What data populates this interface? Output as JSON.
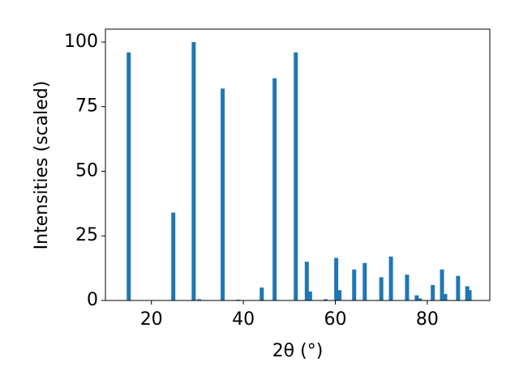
{
  "chart_data": {
    "type": "bar",
    "x_label": "2θ (°)",
    "y_label": "Intensities (scaled)",
    "x": [
      15.07,
      24.76,
      29.2,
      30.4,
      35.5,
      38.9,
      44.0,
      46.8,
      51.4,
      53.8,
      54.5,
      57.9,
      60.2,
      60.9,
      64.1,
      66.4,
      70.0,
      72.1,
      75.6,
      77.7,
      78.4,
      81.2,
      83.2,
      83.9,
      86.7,
      88.7,
      89.2
    ],
    "values": [
      96,
      34,
      100,
      0.5,
      82,
      0.3,
      5,
      86,
      96,
      15,
      3.5,
      0.5,
      16.5,
      4,
      12,
      14.5,
      9,
      17,
      10,
      2,
      0.8,
      6,
      12,
      2.5,
      9.5,
      5.5,
      4
    ],
    "color": "#1f77b4",
    "xlim": [
      10,
      93.6
    ],
    "ylim": [
      0,
      105
    ],
    "xticks": [
      20,
      40,
      60,
      80
    ],
    "yticks": [
      0,
      25,
      50,
      75,
      100
    ]
  }
}
